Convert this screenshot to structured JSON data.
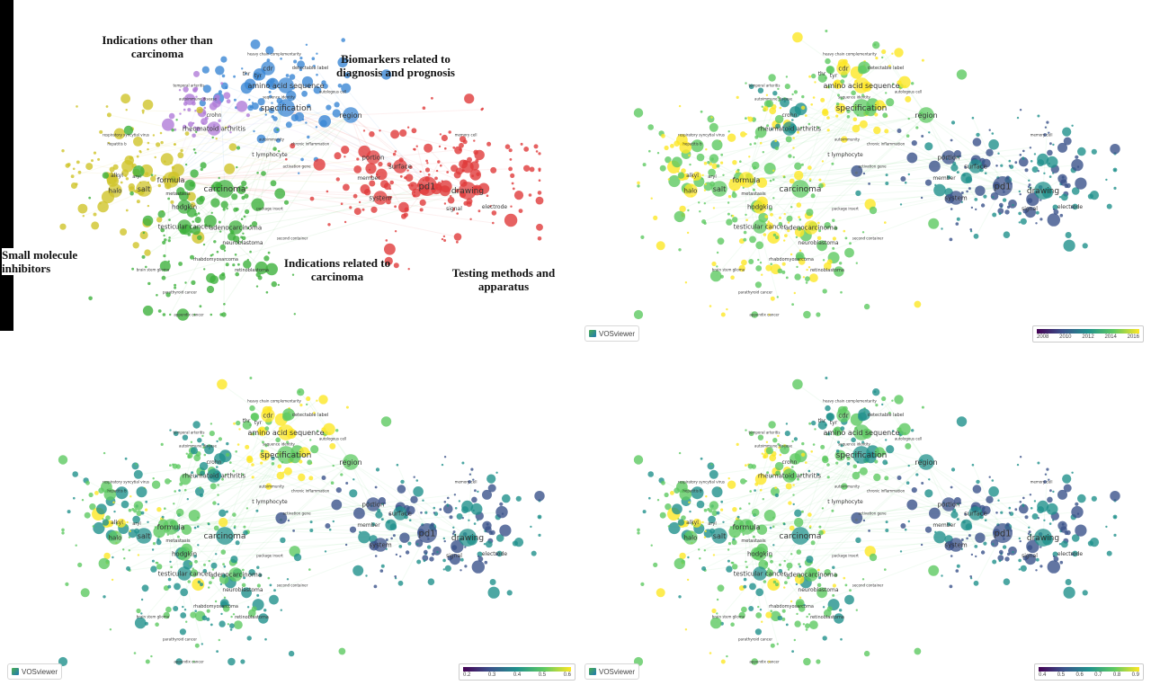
{
  "annotations": {
    "top_left": "Indications other than carcinoma",
    "top_right": "Biomarkers related to diagnosis and prognosis",
    "left": "Small molecule inhibitors",
    "middle": "Indications related to carcinoma",
    "bottom_right": "Testing methods and apparatus"
  },
  "vosviewer_label": "VOSviewer",
  "colorbars": {
    "year": [
      "2008",
      "2010",
      "2012",
      "2014",
      "2016"
    ],
    "score_a": [
      "0.2",
      "0.3",
      "0.4",
      "0.5",
      "0.6"
    ],
    "score_b": [
      "0.4",
      "0.5",
      "0.6",
      "0.7",
      "0.8",
      "0.9"
    ]
  },
  "palettes": {
    "cluster": {
      "blue": "#3b87d4",
      "purple": "#b07cd8",
      "yellow": "#cfc42a",
      "green": "#3fb23d",
      "red": "#e03b3b"
    },
    "viridis": [
      "#440154",
      "#3b528b",
      "#21918c",
      "#5ec962",
      "#fde725"
    ]
  },
  "labels": [
    {
      "text": "specification",
      "cluster": "blue"
    },
    {
      "text": "amino acid sequence",
      "cluster": "blue"
    },
    {
      "text": "region",
      "cluster": "blue"
    },
    {
      "text": "cdr",
      "cluster": "blue"
    },
    {
      "text": "thr",
      "cluster": "blue"
    },
    {
      "text": "tyr",
      "cluster": "blue"
    },
    {
      "text": "heavy chain complementarity",
      "cluster": "blue"
    },
    {
      "text": "detectable label",
      "cluster": "blue"
    },
    {
      "text": "sequence identity",
      "cluster": "blue"
    },
    {
      "text": "t lymphocyte",
      "cluster": "blue"
    },
    {
      "text": "chronic inflammation",
      "cluster": "blue"
    },
    {
      "text": "activation gene",
      "cluster": "blue"
    },
    {
      "text": "autoimmunity",
      "cluster": "blue"
    },
    {
      "text": "autologous cell",
      "cluster": "blue"
    },
    {
      "text": "rheumatoid arthritis",
      "cluster": "purple"
    },
    {
      "text": "crohn",
      "cluster": "purple"
    },
    {
      "text": "temporal arteritis",
      "cluster": "purple"
    },
    {
      "text": "autoimmune disease",
      "cluster": "purple"
    },
    {
      "text": "carcinoma",
      "cluster": "green"
    },
    {
      "text": "hodgkin",
      "cluster": "green"
    },
    {
      "text": "testicular cancer",
      "cluster": "green"
    },
    {
      "text": "adenocarcinoma",
      "cluster": "green"
    },
    {
      "text": "neuroblastoma",
      "cluster": "green"
    },
    {
      "text": "rhabdomyosarcoma",
      "cluster": "green"
    },
    {
      "text": "retinoblastoma",
      "cluster": "green"
    },
    {
      "text": "metastasis",
      "cluster": "green"
    },
    {
      "text": "brain stem glioma",
      "cluster": "green"
    },
    {
      "text": "parathyroid cancer",
      "cluster": "green"
    },
    {
      "text": "appendix cancer",
      "cluster": "green"
    },
    {
      "text": "formula",
      "cluster": "yellow"
    },
    {
      "text": "salt",
      "cluster": "yellow"
    },
    {
      "text": "halo",
      "cluster": "yellow"
    },
    {
      "text": "alkyl",
      "cluster": "yellow"
    },
    {
      "text": "hepatitis b",
      "cluster": "yellow"
    },
    {
      "text": "respiratory syncytial virus",
      "cluster": "yellow"
    },
    {
      "text": "aryl",
      "cluster": "yellow"
    },
    {
      "text": "pd1",
      "cluster": "red"
    },
    {
      "text": "drawing",
      "cluster": "red"
    },
    {
      "text": "system",
      "cluster": "red"
    },
    {
      "text": "surface",
      "cluster": "red"
    },
    {
      "text": "portion",
      "cluster": "red"
    },
    {
      "text": "member",
      "cluster": "red"
    },
    {
      "text": "electrode",
      "cluster": "red"
    },
    {
      "text": "signal",
      "cluster": "red"
    },
    {
      "text": "package insert",
      "cluster": "red"
    },
    {
      "text": "memory cell",
      "cluster": "red"
    },
    {
      "text": "second container",
      "cluster": "red"
    }
  ]
}
